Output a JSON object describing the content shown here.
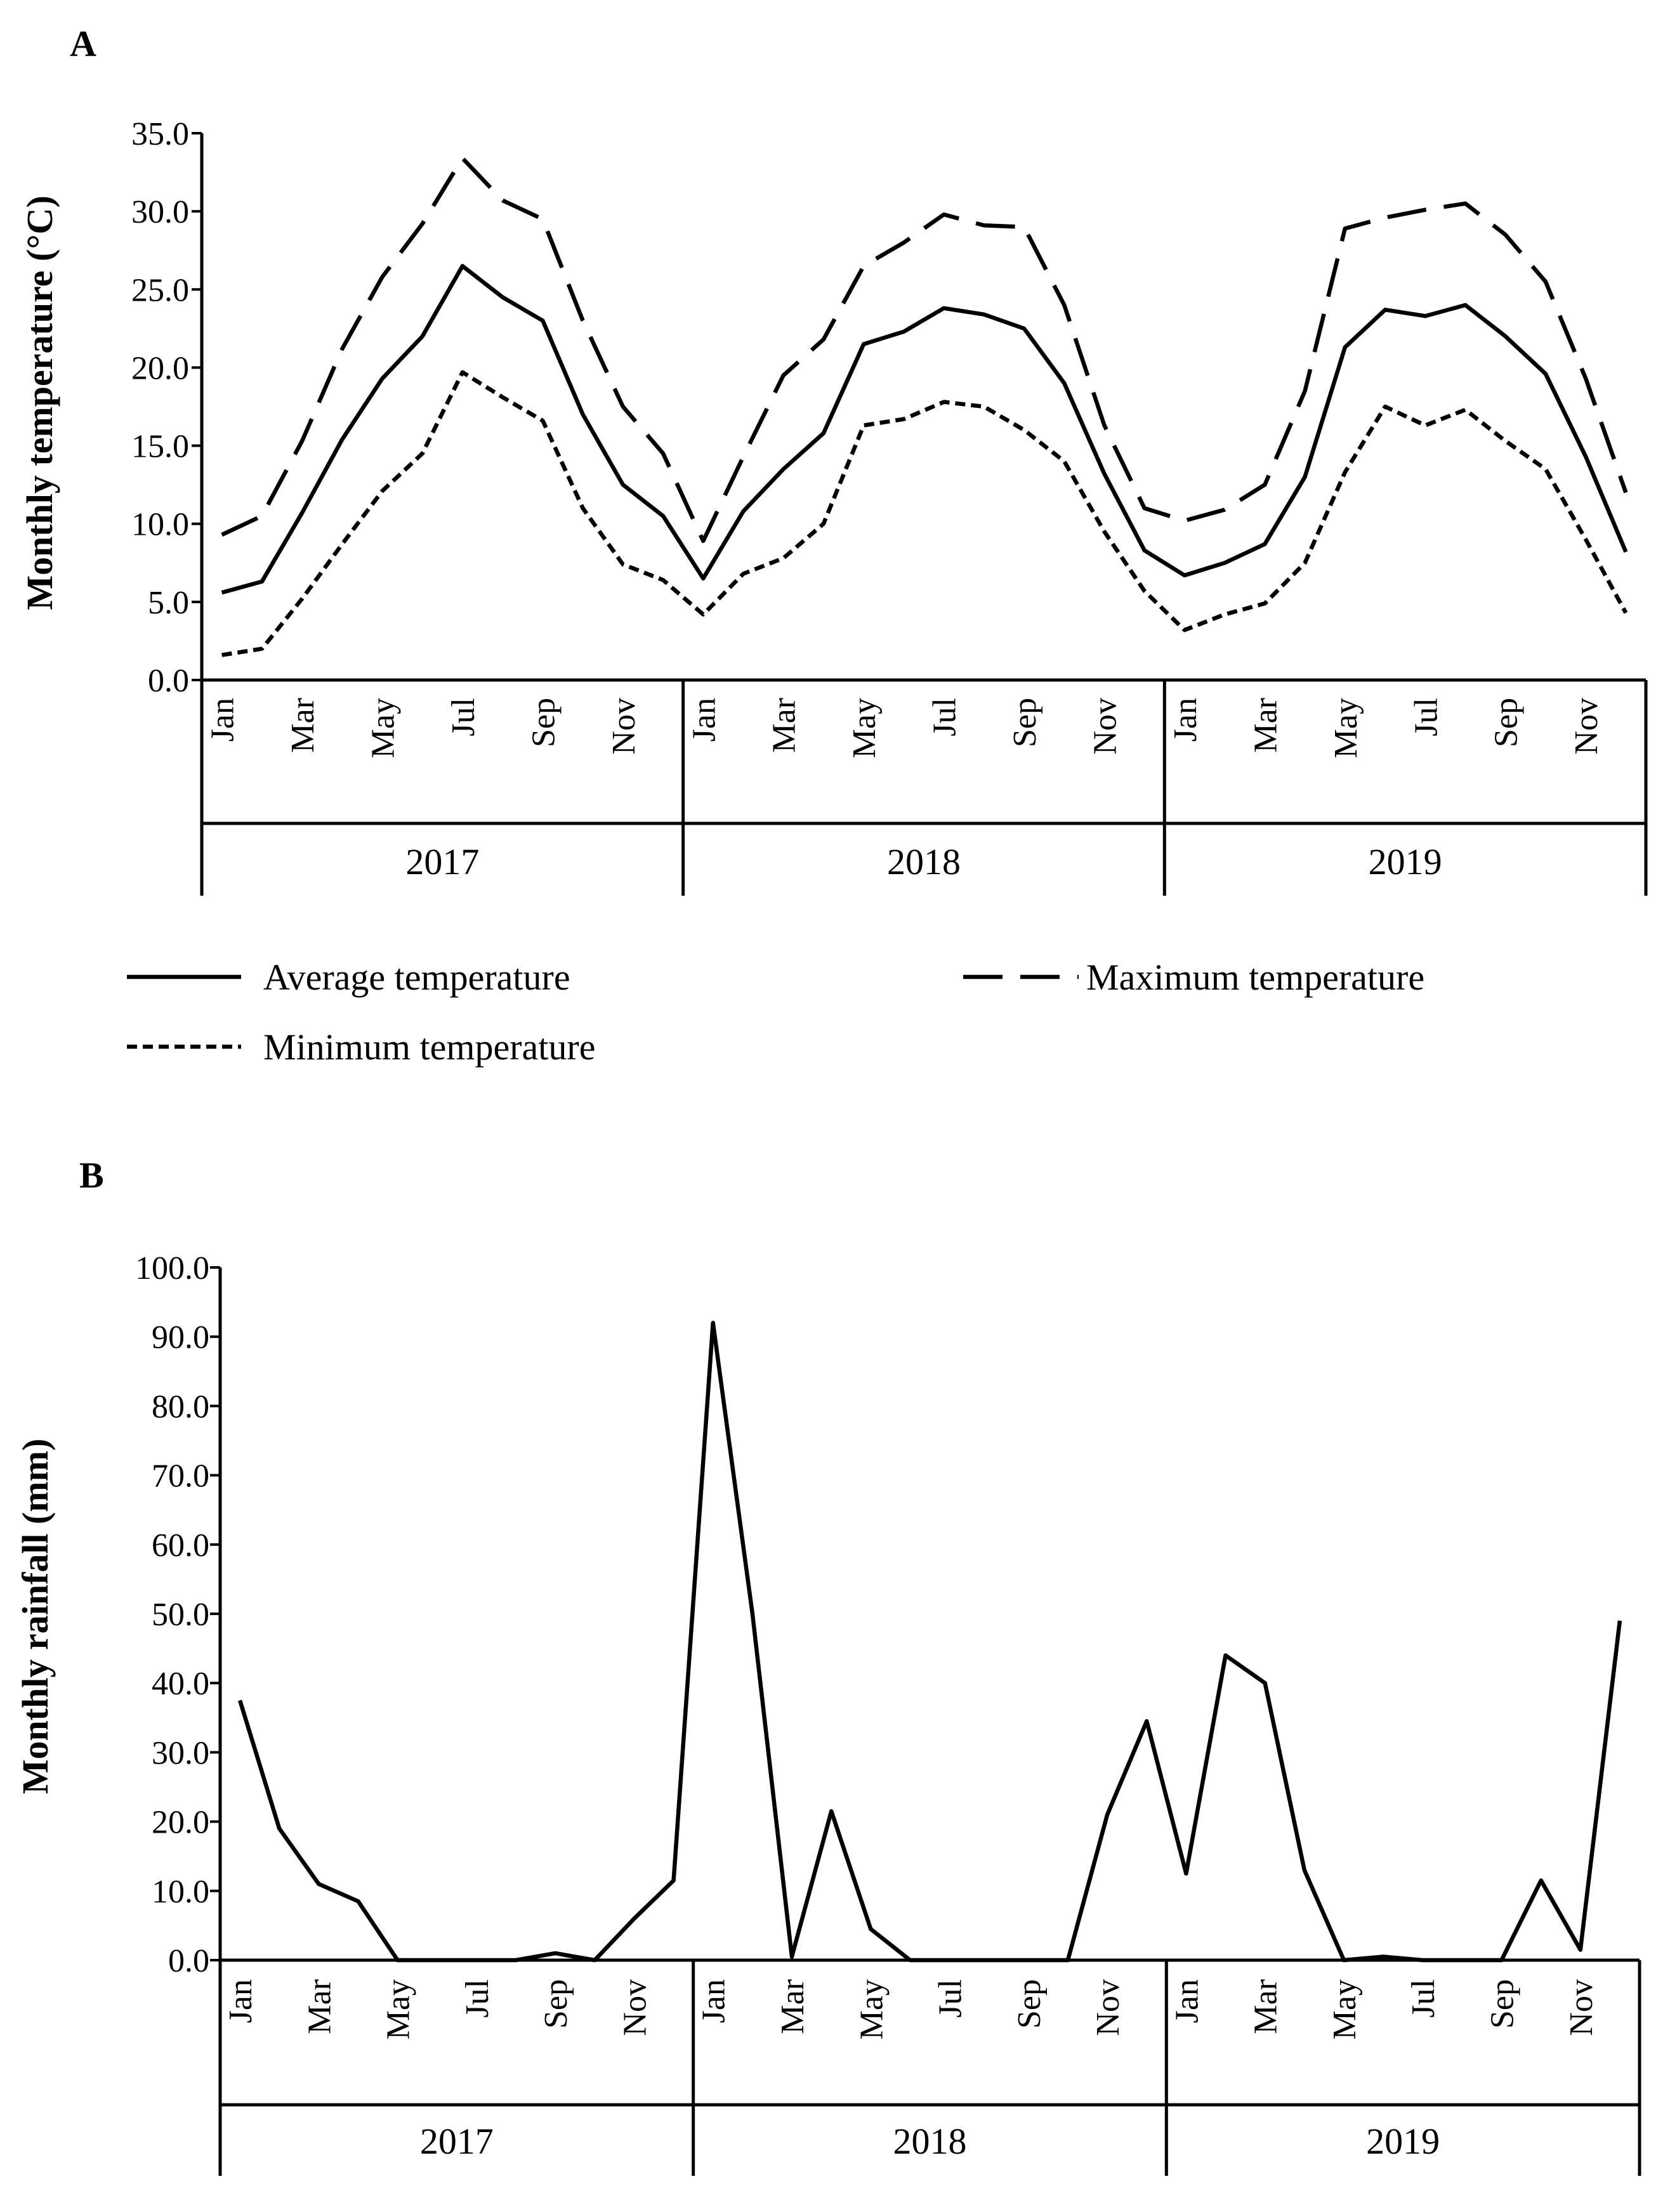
{
  "chart_data": [
    {
      "panel": "A",
      "type": "line",
      "title": "",
      "ylabel": "Monthly  temperature (°C)",
      "xlabel": "",
      "ylim": [
        0,
        35
      ],
      "yticks": [
        "0.0",
        "5.0",
        "10.0",
        "15.0",
        "20.0",
        "25.0",
        "30.0",
        "35.0"
      ],
      "years": [
        "2017",
        "2018",
        "2019"
      ],
      "month_tick_labels": [
        "Jan",
        "Mar",
        "May",
        "Jul",
        "Sep",
        "Nov"
      ],
      "series": [
        {
          "name": "Average temperature",
          "style": "solid",
          "values": [
            5.6,
            6.3,
            10.7,
            15.4,
            19.3,
            22.0,
            26.5,
            24.5,
            23.0,
            17.0,
            12.5,
            10.5,
            6.5,
            10.8,
            13.5,
            15.8,
            21.5,
            22.3,
            23.8,
            23.4,
            22.5,
            19.0,
            13.2,
            8.3,
            6.7,
            7.5,
            8.7,
            13.0,
            21.3,
            23.7,
            23.3,
            24.0,
            22.0,
            19.6,
            14.3,
            8.2
          ]
        },
        {
          "name": "Maximum temperature",
          "style": "long-dash",
          "values": [
            9.3,
            10.5,
            15.3,
            21.2,
            25.8,
            29.2,
            33.4,
            30.7,
            29.5,
            23.0,
            17.5,
            14.5,
            8.9,
            14.3,
            19.5,
            21.8,
            26.5,
            28.0,
            29.8,
            29.1,
            29.0,
            24.0,
            16.3,
            11.0,
            10.2,
            10.9,
            12.5,
            18.5,
            28.9,
            29.6,
            30.1,
            30.5,
            28.5,
            25.5,
            19.3,
            12.0
          ]
        },
        {
          "name": "Minimum temperature",
          "style": "short-dash",
          "values": [
            1.6,
            2.0,
            5.2,
            8.7,
            12.1,
            14.5,
            19.7,
            18.1,
            16.6,
            11.0,
            7.4,
            6.4,
            4.2,
            6.8,
            7.8,
            10.0,
            16.3,
            16.7,
            17.8,
            17.5,
            16.0,
            14.0,
            9.5,
            5.7,
            3.2,
            4.2,
            4.9,
            7.5,
            13.3,
            17.5,
            16.3,
            17.3,
            15.3,
            13.5,
            9.0,
            4.3
          ]
        }
      ],
      "legend": [
        "Average temperature",
        "Maximum temperature",
        "Minimum temperature"
      ],
      "legend_position": "below"
    },
    {
      "panel": "B",
      "type": "line",
      "title": "",
      "ylabel": "Monthly rainfall (mm)",
      "xlabel": "",
      "ylim": [
        0,
        100
      ],
      "yticks": [
        "0.0",
        "10.0",
        "20.0",
        "30.0",
        "40.0",
        "50.0",
        "60.0",
        "70.0",
        "80.0",
        "90.0",
        "100.0"
      ],
      "years": [
        "2017",
        "2018",
        "2019"
      ],
      "month_tick_labels": [
        "Jan",
        "Mar",
        "May",
        "Jul",
        "Sep",
        "Nov"
      ],
      "series": [
        {
          "name": "Monthly rainfall",
          "style": "solid",
          "values": [
            37.5,
            19.0,
            11.0,
            8.5,
            0.0,
            0.0,
            0.0,
            0.0,
            1.0,
            0.0,
            6.0,
            11.5,
            92.0,
            50.0,
            0.5,
            21.5,
            4.5,
            0.0,
            0.0,
            0.0,
            0.0,
            0.0,
            21.0,
            34.5,
            12.5,
            44.0,
            40.0,
            13.0,
            0.0,
            0.5,
            0.0,
            0.0,
            0.0,
            11.5,
            1.5,
            49.0
          ]
        }
      ]
    }
  ]
}
